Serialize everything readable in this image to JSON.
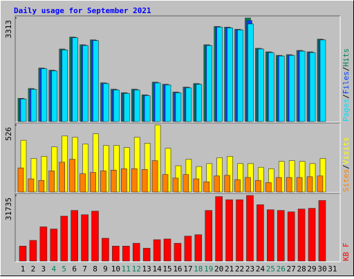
{
  "title": "Daily usage for September 2021",
  "legend_separator": "/",
  "chart_data": [
    {
      "type": "bar",
      "ylim": [
        0,
        3313
      ],
      "yticks": [
        3313
      ],
      "series": [
        {
          "name": "Hits",
          "color": "#00805c",
          "values": [
            744,
            1059,
            1713,
            1645,
            2321,
            2704,
            2457,
            2614,
            1240,
            1037,
            924,
            1037,
            856,
            1262,
            1194,
            947,
            1104,
            1217,
            2457,
            3043,
            3020,
            2952,
            3313,
            2344,
            2231,
            2119,
            2141,
            2276,
            2231,
            2637,
            null
          ]
        },
        {
          "name": "Files",
          "color": "#0040ff",
          "values": [
            730,
            1040,
            1700,
            1630,
            2300,
            2690,
            2440,
            2600,
            1225,
            1020,
            910,
            1020,
            840,
            1245,
            1180,
            930,
            1090,
            1200,
            2440,
            3030,
            3005,
            2940,
            3230,
            2330,
            2215,
            2105,
            2125,
            2260,
            2215,
            2620,
            null
          ]
        },
        {
          "name": "Pages",
          "color": "#00e0ff",
          "values": [
            720,
            1030,
            1690,
            1620,
            2290,
            2680,
            2430,
            2590,
            1215,
            1010,
            900,
            1010,
            830,
            1235,
            1170,
            920,
            1080,
            1190,
            2430,
            3020,
            2995,
            2930,
            3120,
            2320,
            2205,
            2095,
            2115,
            2250,
            2205,
            2610,
            null
          ]
        }
      ]
    },
    {
      "type": "bar",
      "ylim": [
        0,
        526
      ],
      "yticks": [
        526
      ],
      "series": [
        {
          "name": "Visits",
          "color": "#ffff00",
          "values": [
            406,
            263,
            280,
            354,
            440,
            429,
            377,
            457,
            366,
            366,
            349,
            429,
            383,
            526,
            343,
            206,
            257,
            200,
            223,
            269,
            280,
            223,
            223,
            194,
            183,
            240,
            246,
            240,
            223,
            263,
            null
          ]
        },
        {
          "name": "Sites",
          "color": "#ff8000",
          "values": [
            189,
            103,
            91,
            166,
            234,
            257,
            143,
            154,
            166,
            172,
            183,
            183,
            177,
            246,
            137,
            109,
            137,
            103,
            80,
            126,
            131,
            97,
            114,
            91,
            74,
            114,
            114,
            114,
            120,
            126,
            null
          ]
        }
      ]
    },
    {
      "type": "bar",
      "ylim": [
        0,
        31735
      ],
      "yticks": [
        31735
      ],
      "categories": [
        "1",
        "2",
        "3",
        "4",
        "5",
        "6",
        "7",
        "8",
        "9",
        "10",
        "11",
        "12",
        "13",
        "14",
        "15",
        "16",
        "17",
        "18",
        "19",
        "20",
        "21",
        "22",
        "23",
        "24",
        "25",
        "26",
        "27",
        "28",
        "29",
        "30",
        "31"
      ],
      "tick_label_colors": [
        "#000000",
        "#000000",
        "#000000",
        "#00805c",
        "#00805c",
        "#000000",
        "#000000",
        "#000000",
        "#000000",
        "#000000",
        "#00805c",
        "#00805c",
        "#000000",
        "#000000",
        "#000000",
        "#000000",
        "#000000",
        "#00805c",
        "#00805c",
        "#000000",
        "#000000",
        "#000000",
        "#000000",
        "#000000",
        "#00805c",
        "#00805c",
        "#000000",
        "#000000",
        "#000000",
        "#000000",
        "#000000"
      ],
      "series": [
        {
          "name": "KB F",
          "color": "#ff0000",
          "values": [
            7244,
            10003,
            16557,
            15523,
            21732,
            24491,
            22422,
            24146,
            11038,
            7244,
            7244,
            8624,
            6209,
            10348,
            10693,
            8624,
            12073,
            12763,
            24491,
            31200,
            29665,
            29665,
            31735,
            27251,
            24836,
            24491,
            23801,
            25181,
            25526,
            29320,
            null
          ]
        }
      ]
    }
  ]
}
